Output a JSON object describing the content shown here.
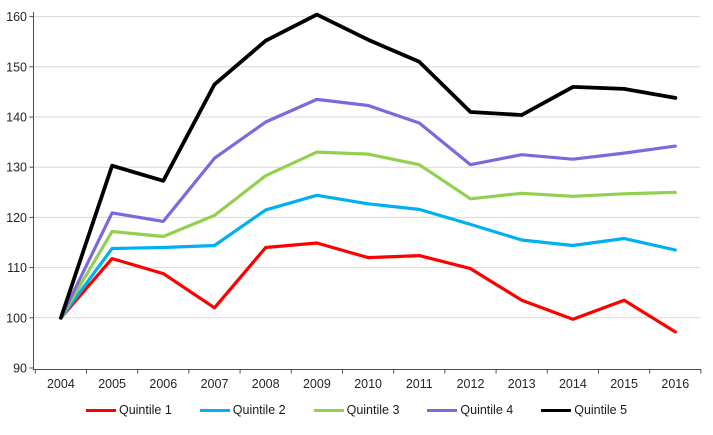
{
  "chart_data": {
    "type": "line",
    "x": [
      2004,
      2005,
      2006,
      2007,
      2008,
      2009,
      2010,
      2011,
      2012,
      2013,
      2014,
      2015,
      2016
    ],
    "series": [
      {
        "name": "Quintile 1",
        "color": "#FF0000",
        "values": [
          100,
          111.8,
          108.8,
          102.0,
          114.0,
          114.9,
          112.0,
          112.4,
          109.8,
          103.5,
          99.7,
          103.5,
          97.2
        ]
      },
      {
        "name": "Quintile 2",
        "color": "#00B0F0",
        "values": [
          100,
          113.8,
          114.0,
          114.4,
          121.5,
          124.4,
          122.7,
          121.6,
          118.6,
          115.5,
          114.4,
          115.8,
          113.5
        ]
      },
      {
        "name": "Quintile 3",
        "color": "#92D050",
        "values": [
          100,
          117.2,
          116.2,
          120.4,
          128.3,
          133.0,
          132.6,
          130.5,
          123.7,
          124.8,
          124.2,
          124.7,
          125.0
        ]
      },
      {
        "name": "Quintile 4",
        "color": "#7D69DC",
        "values": [
          100,
          120.9,
          119.2,
          131.8,
          139.0,
          143.5,
          142.3,
          138.8,
          130.5,
          132.5,
          131.6,
          132.8,
          134.2
        ]
      },
      {
        "name": "Quintile 5",
        "color": "#000000",
        "values": [
          100,
          130.3,
          127.3,
          146.5,
          155.2,
          160.4,
          155.4,
          151.0,
          141.0,
          140.4,
          146.0,
          145.6,
          143.8
        ]
      }
    ],
    "title": "",
    "xlabel": "",
    "ylabel": "",
    "ylim": [
      90,
      160
    ],
    "yticks": [
      90,
      100,
      110,
      120,
      130,
      140,
      150,
      160
    ],
    "grid": true,
    "legend_position": "bottom",
    "colors": {
      "gridline": "#D9D9D9",
      "axis": "#4d4d4d",
      "text": "#262626",
      "background": "#FFFFFF"
    }
  }
}
